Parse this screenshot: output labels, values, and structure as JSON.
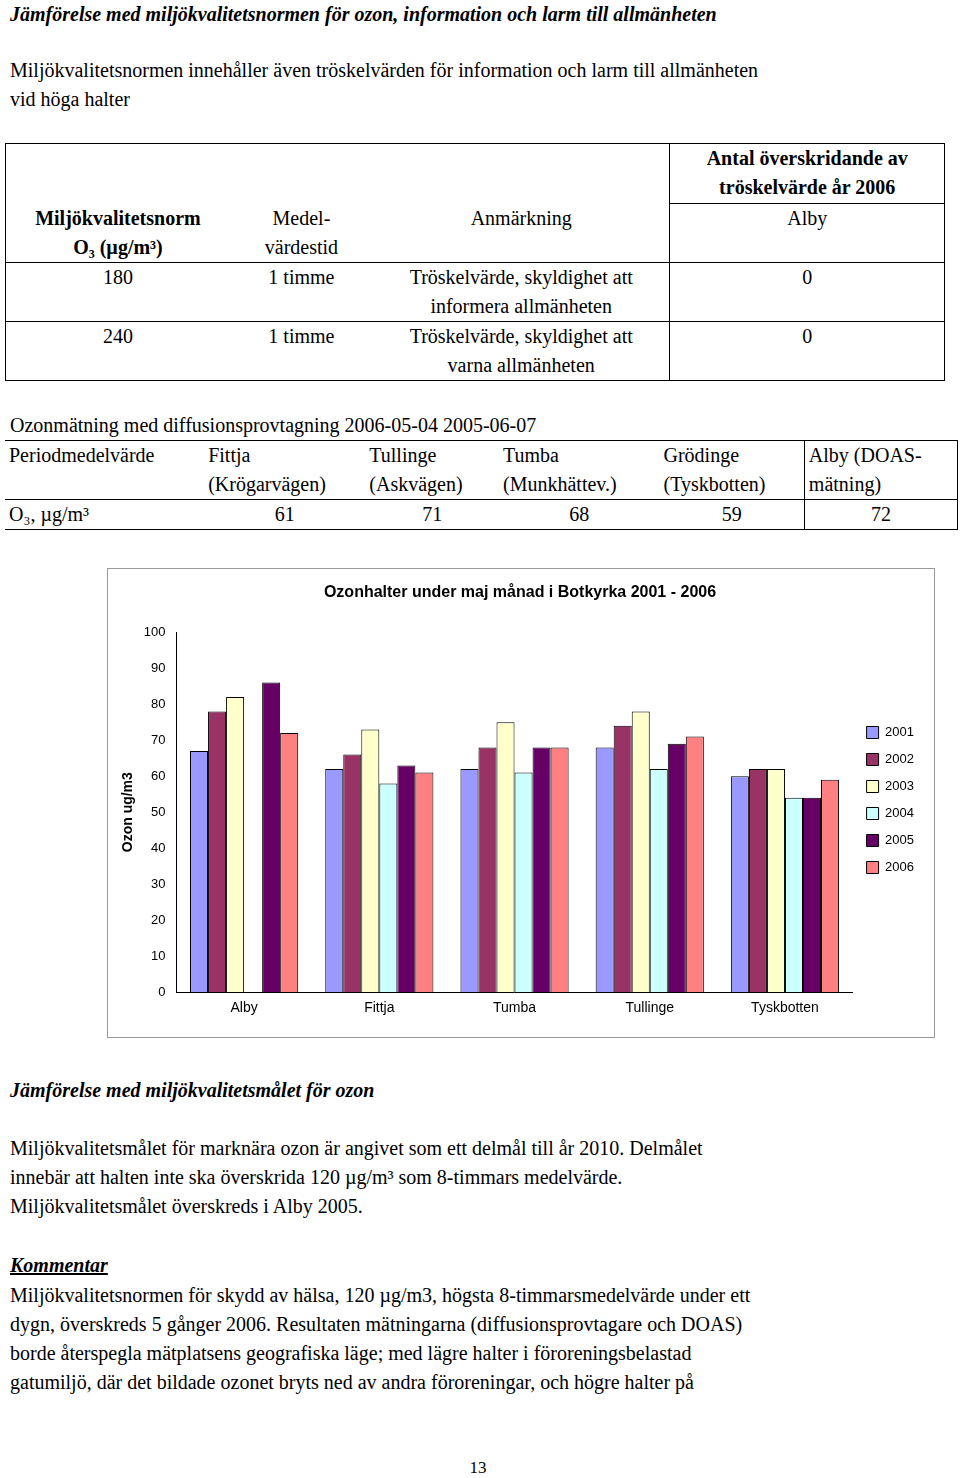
{
  "document": {
    "heading": "Jämförelse med miljökvalitetsnormen för ozon, information och larm till allmänheten",
    "intro": [
      "Miljökvalitetsnormen innehåller även tröskelvärden för information och larm till allmänheten",
      "vid höga halter"
    ],
    "table1": {
      "columns": [
        "Miljökvalitetsnorm\nO₃ (µg/m³)",
        "Medel-\nvärdestid",
        "Anmärkning"
      ],
      "group_title": "Antal överskridande av\ntröskelvärde år 2006",
      "group_column": "Alby",
      "rows": [
        [
          180,
          "1 timme",
          "Tröskelvärde, skyldighet att\ninformera allmänheten",
          0
        ],
        [
          240,
          "1 timme",
          "Tröskelvärde, skyldighet att\nvarna allmänheten",
          0
        ]
      ]
    },
    "table2": {
      "title": "Ozonmätning med diffusionsprovtagning 2006-05-04   2005-06-07",
      "columns": [
        "Periodmedelvärde",
        "Fittja\n(Krögarvägen)",
        "Tullinge\n(Askvägen)",
        "Tumba\n(Munkhättev.)",
        "Grödinge\n(Tyskbotten)",
        "Alby (DOAS-\nmätning)"
      ],
      "rows": [
        [
          "O₃, µg/m³",
          61,
          71,
          68,
          59,
          72
        ]
      ]
    },
    "section1": {
      "heading": "Jämförelse med miljökvalitetsmålet för ozon",
      "lines": [
        "Miljökvalitetsmålet för marknära ozon är angivet som ett delmål till år 2010. Delmålet",
        "innebär att halten inte ska överskrida 120 µg/m³ som 8-timmars medelvärde.",
        "Miljökvalitetsmålet överskreds i Alby 2005."
      ]
    },
    "section2": {
      "heading": "Kommentar",
      "lines": [
        "Miljökvalitetsnormen för skydd av hälsa, 120 µg/m3, högsta 8-timmarsmedelvärde under ett",
        "dygn, överskreds 5 gånger 2006. Resultaten mätningarna (diffusionsprovtagare och DOAS)",
        "borde återspegla mätplatsens geografiska läge; med lägre halter i föroreningsbelastad",
        "gatumiljö, där det bildade ozonet bryts ned av andra föroreningar, och högre halter på"
      ]
    },
    "page_number": "13"
  },
  "chart_data": {
    "type": "bar",
    "title": "Ozonhalter under maj månad i Botkyrka 2001 - 2006",
    "y_label": "Ozon ug/m3",
    "categories": [
      "Alby",
      "Fittja",
      "Tumba",
      "Tullinge",
      "Tyskbotten"
    ],
    "series": [
      {
        "name": "2001",
        "color": "#9999ff",
        "values": [
          67,
          62,
          62,
          68,
          60
        ]
      },
      {
        "name": "2002",
        "color": "#993366",
        "values": [
          78,
          66,
          68,
          74,
          62
        ]
      },
      {
        "name": "2003",
        "color": "#ffffcc",
        "values": [
          82,
          73,
          75,
          78,
          62
        ]
      },
      {
        "name": "2004",
        "color": "#ccffff",
        "values": [
          null,
          58,
          61,
          62,
          54
        ]
      },
      {
        "name": "2005",
        "color": "#660066",
        "values": [
          86,
          63,
          68,
          69,
          54
        ]
      },
      {
        "name": "2006",
        "color": "#ff8080",
        "values": [
          72,
          61,
          68,
          71,
          59
        ]
      }
    ],
    "ylim": [
      0,
      100
    ],
    "yticks": [
      0,
      10,
      20,
      30,
      40,
      50,
      60,
      70,
      80,
      90,
      100
    ],
    "grid": false,
    "legend": "right"
  }
}
